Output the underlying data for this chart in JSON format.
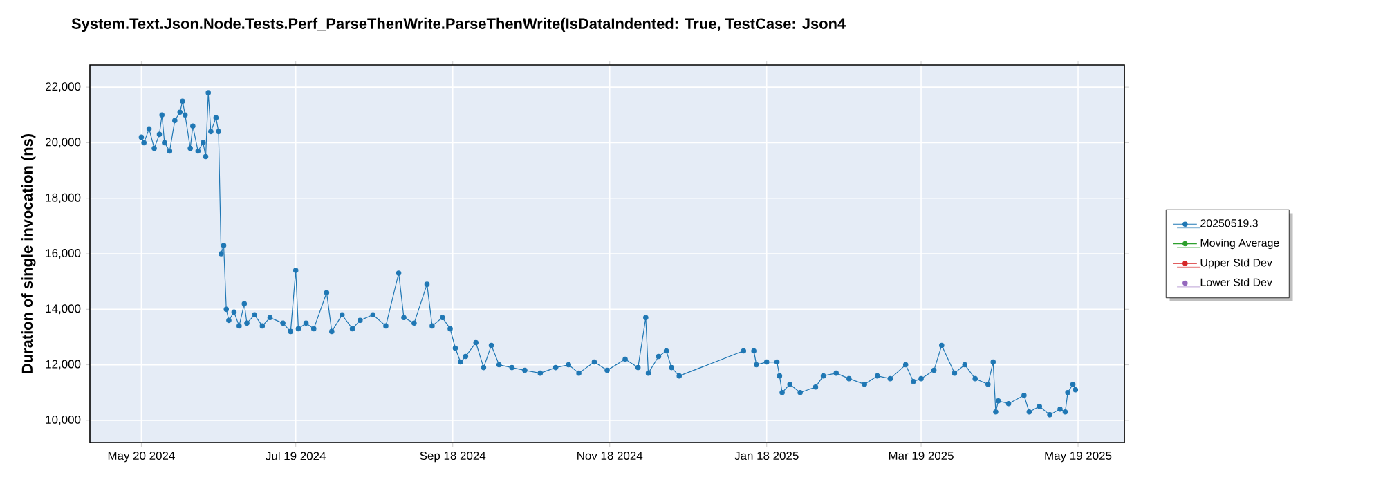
{
  "chart_data": {
    "type": "line",
    "title": "System.Text.Json.Node.Tests.Perf_ParseThenWrite.ParseThenWrite(IsDataIndented: True, TestCase: Json4",
    "ylabel": "Duration of single invocation (ns)",
    "x": [
      "2024-05-20",
      "2024-05-21",
      "2024-05-23",
      "2024-05-25",
      "2024-05-27",
      "2024-05-28",
      "2024-05-29",
      "2024-05-31",
      "2024-06-02",
      "2024-06-04",
      "2024-06-05",
      "2024-06-06",
      "2024-06-08",
      "2024-06-09",
      "2024-06-11",
      "2024-06-13",
      "2024-06-14",
      "2024-06-15",
      "2024-06-16",
      "2024-06-18",
      "2024-06-19",
      "2024-06-20",
      "2024-06-21",
      "2024-06-22",
      "2024-06-23",
      "2024-06-25",
      "2024-06-27",
      "2024-06-29",
      "2024-06-30",
      "2024-07-03",
      "2024-07-06",
      "2024-07-09",
      "2024-07-14",
      "2024-07-17",
      "2024-07-19",
      "2024-07-20",
      "2024-07-23",
      "2024-07-26",
      "2024-07-31",
      "2024-08-02",
      "2024-08-06",
      "2024-08-10",
      "2024-08-13",
      "2024-08-18",
      "2024-08-23",
      "2024-08-28",
      "2024-08-30",
      "2024-09-03",
      "2024-09-08",
      "2024-09-10",
      "2024-09-14",
      "2024-09-17",
      "2024-09-19",
      "2024-09-21",
      "2024-09-23",
      "2024-09-27",
      "2024-09-30",
      "2024-10-03",
      "2024-10-06",
      "2024-10-11",
      "2024-10-16",
      "2024-10-22",
      "2024-10-28",
      "2024-11-02",
      "2024-11-06",
      "2024-11-12",
      "2024-11-17",
      "2024-11-24",
      "2024-11-29",
      "2024-12-02",
      "2024-12-03",
      "2024-12-07",
      "2024-12-10",
      "2024-12-12",
      "2024-12-15",
      "2025-01-09",
      "2025-01-13",
      "2025-01-14",
      "2025-01-18",
      "2025-01-22",
      "2025-01-23",
      "2025-01-24",
      "2025-01-27",
      "2025-01-31",
      "2025-02-06",
      "2025-02-09",
      "2025-02-14",
      "2025-02-19",
      "2025-02-25",
      "2025-03-02",
      "2025-03-07",
      "2025-03-13",
      "2025-03-16",
      "2025-03-19",
      "2025-03-24",
      "2025-03-27",
      "2025-04-01",
      "2025-04-05",
      "2025-04-09",
      "2025-04-14",
      "2025-04-16",
      "2025-04-17",
      "2025-04-18",
      "2025-04-22",
      "2025-04-28",
      "2025-04-30",
      "2025-05-04",
      "2025-05-08",
      "2025-05-12",
      "2025-05-14",
      "2025-05-15",
      "2025-05-17",
      "2025-05-18"
    ],
    "series": [
      {
        "name": "20250519.3",
        "color": "#1f77b4",
        "values": [
          20200,
          20000,
          20500,
          19800,
          20300,
          21000,
          20000,
          19700,
          20800,
          21100,
          21500,
          21000,
          19800,
          20600,
          19700,
          20000,
          19500,
          21800,
          20400,
          20900,
          20400,
          16000,
          16300,
          14000,
          13600,
          13900,
          13400,
          14200,
          13500,
          13800,
          13400,
          13700,
          13500,
          13200,
          15400,
          13300,
          13500,
          13300,
          14600,
          13200,
          13800,
          13300,
          13600,
          13800,
          13400,
          15300,
          13700,
          13500,
          14900,
          13400,
          13700,
          13300,
          12600,
          12100,
          12300,
          12800,
          11900,
          12700,
          12000,
          11900,
          11800,
          11700,
          11900,
          12000,
          11700,
          12100,
          11800,
          12200,
          11900,
          13700,
          11700,
          12300,
          12500,
          11900,
          11600,
          12500,
          12500,
          12000,
          12100,
          12100,
          11600,
          11000,
          11300,
          11000,
          11200,
          11600,
          11700,
          11500,
          11300,
          11600,
          11500,
          12000,
          11400,
          11500,
          11800,
          12700,
          11700,
          12000,
          11500,
          11300,
          12100,
          10300,
          10700,
          10600,
          10900,
          10300,
          10500,
          10200,
          10400,
          10300,
          11000,
          11300,
          11100
        ]
      },
      {
        "name": "Moving Average",
        "color": "#2ca02c",
        "values": [
          null,
          null,
          null,
          null,
          null,
          null,
          null,
          null,
          null,
          null,
          null,
          null,
          null,
          null,
          null,
          null,
          null,
          null,
          null,
          null,
          null,
          null,
          null,
          null,
          null,
          null,
          null,
          null,
          null,
          null,
          null,
          null,
          null,
          null,
          null,
          null,
          null,
          null,
          null,
          null,
          null,
          null,
          null,
          null,
          null,
          null,
          null,
          null,
          null,
          null,
          null,
          null,
          null,
          null,
          null,
          null,
          null,
          null,
          null,
          null,
          null,
          null,
          null,
          null,
          null,
          null,
          null,
          null,
          null,
          null,
          null,
          null,
          null,
          null,
          null,
          null,
          null,
          null,
          null,
          null,
          null,
          null,
          null,
          null,
          null,
          null,
          null,
          null,
          null,
          null,
          null,
          null,
          null,
          null,
          null,
          null,
          null,
          null,
          null,
          null,
          null,
          null,
          null,
          null,
          null,
          null,
          null,
          null,
          null,
          null,
          null,
          null,
          null
        ]
      },
      {
        "name": "Upper Std Dev",
        "color": "#d62728",
        "values": [
          null,
          null,
          null,
          null,
          null,
          null,
          null,
          null,
          null,
          null,
          null,
          null,
          null,
          null,
          null,
          null,
          null,
          null,
          null,
          null,
          null,
          null,
          null,
          null,
          null,
          null,
          null,
          null,
          null,
          null,
          null,
          null,
          null,
          null,
          null,
          null,
          null,
          null,
          null,
          null,
          null,
          null,
          null,
          null,
          null,
          null,
          null,
          null,
          null,
          null,
          null,
          null,
          null,
          null,
          null,
          null,
          null,
          null,
          null,
          null,
          null,
          null,
          null,
          null,
          null,
          null,
          null,
          null,
          null,
          null,
          null,
          null,
          null,
          null,
          null,
          null,
          null,
          null,
          null,
          null,
          null,
          null,
          null,
          null,
          null,
          null,
          null,
          null,
          null,
          null,
          null,
          null,
          null,
          null,
          null,
          null,
          null,
          null,
          null,
          null,
          null,
          null,
          null,
          null,
          null,
          null,
          null,
          null,
          null,
          null,
          null,
          null,
          null
        ]
      },
      {
        "name": "Lower Std Dev",
        "color": "#9467bd",
        "values": [
          null,
          null,
          null,
          null,
          null,
          null,
          null,
          null,
          null,
          null,
          null,
          null,
          null,
          null,
          null,
          null,
          null,
          null,
          null,
          null,
          null,
          null,
          null,
          null,
          null,
          null,
          null,
          null,
          null,
          null,
          null,
          null,
          null,
          null,
          null,
          null,
          null,
          null,
          null,
          null,
          null,
          null,
          null,
          null,
          null,
          null,
          null,
          null,
          null,
          null,
          null,
          null,
          null,
          null,
          null,
          null,
          null,
          null,
          null,
          null,
          null,
          null,
          null,
          null,
          null,
          null,
          null,
          null,
          null,
          null,
          null,
          null,
          null,
          null,
          null,
          null,
          null,
          null,
          null,
          null,
          null,
          null,
          null,
          null,
          null,
          null,
          null,
          null,
          null,
          null,
          null,
          null,
          null,
          null,
          null,
          null,
          null,
          null,
          null,
          null,
          null,
          null,
          null,
          null,
          null,
          null,
          null,
          null,
          null,
          null,
          null,
          null,
          null
        ]
      }
    ],
    "xlim": [
      "2024-04-30",
      "2025-06-06"
    ],
    "xticks": [
      {
        "value": "2024-05-20",
        "label": "May 20 2024"
      },
      {
        "value": "2024-07-19",
        "label": "Jul 19 2024"
      },
      {
        "value": "2024-09-18",
        "label": "Sep 18 2024"
      },
      {
        "value": "2024-11-18",
        "label": "Nov 18 2024"
      },
      {
        "value": "2025-01-18",
        "label": "Jan 18 2025"
      },
      {
        "value": "2025-03-19",
        "label": "Mar 19 2025"
      },
      {
        "value": "2025-05-19",
        "label": "May 19 2025"
      }
    ],
    "ylim": [
      9200,
      22800
    ],
    "yticks": [
      {
        "value": 10000,
        "label": "10,000"
      },
      {
        "value": 12000,
        "label": "12,000"
      },
      {
        "value": 14000,
        "label": "14,000"
      },
      {
        "value": 16000,
        "label": "16,000"
      },
      {
        "value": 18000,
        "label": "18,000"
      },
      {
        "value": 20000,
        "label": "20,000"
      },
      {
        "value": 22000,
        "label": "22,000"
      }
    ],
    "grid": true,
    "legend": "right",
    "marker": "circle",
    "line_style": "solid"
  }
}
